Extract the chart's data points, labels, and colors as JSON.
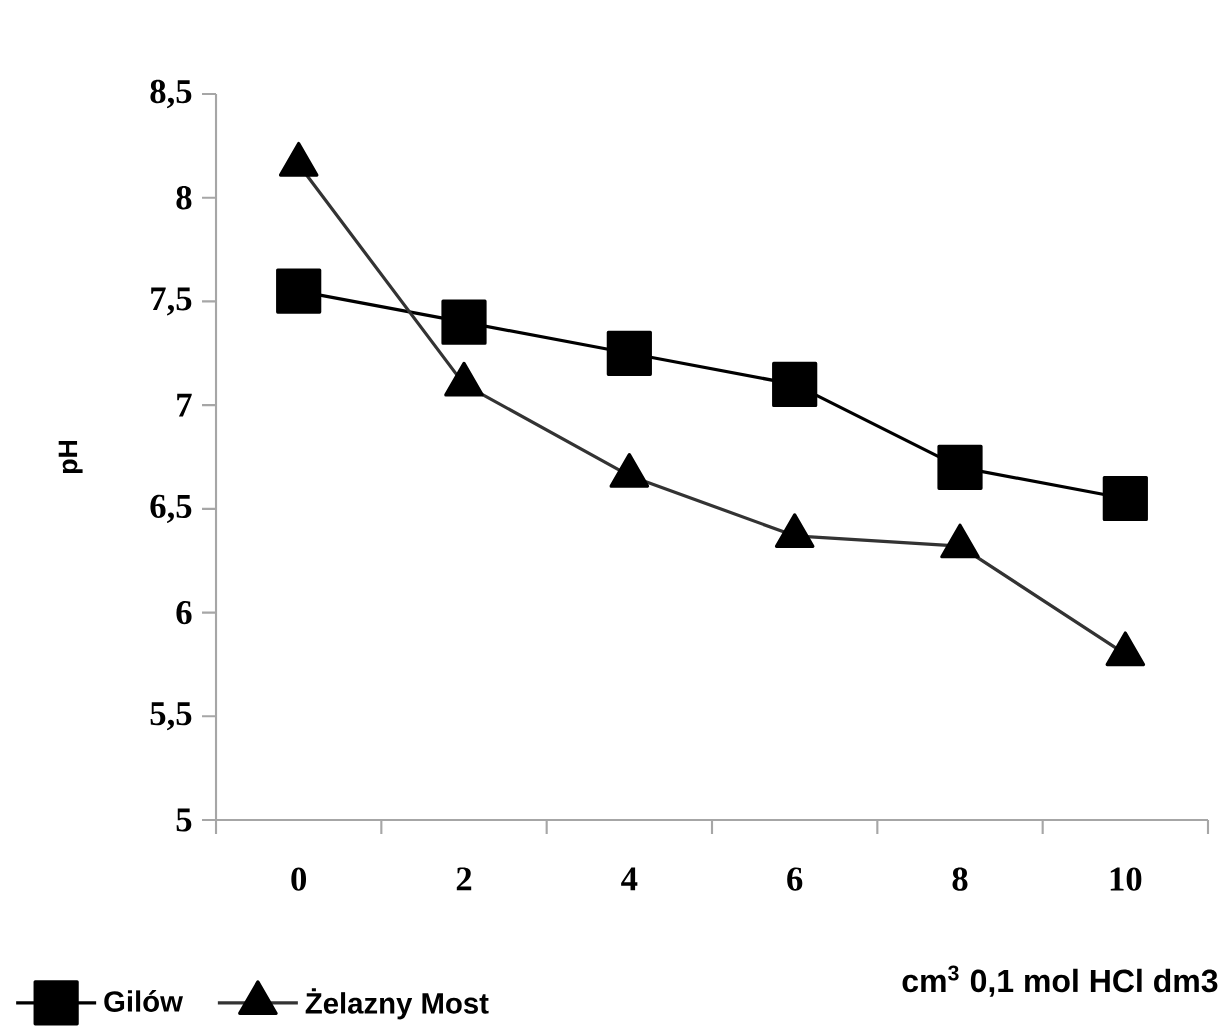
{
  "chart_data": {
    "type": "line",
    "xlabel": "cm$^{3}$ 0,1 mol HCl dm3",
    "ylabel": "pH",
    "categories": [
      "0",
      "2",
      "4",
      "6",
      "8",
      "10"
    ],
    "series": [
      {
        "name": "Gilów",
        "color": "#000000",
        "marker": "square",
        "values": [
          7.55,
          7.4,
          7.25,
          7.1,
          6.7,
          6.55
        ]
      },
      {
        "name": "Żelazny Most",
        "color": "#333333",
        "marker": "triangle",
        "values": [
          8.16,
          7.1,
          6.66,
          6.37,
          6.32,
          5.8
        ]
      }
    ],
    "ylim": [
      5,
      8.5
    ],
    "yticks": [
      {
        "value": 5,
        "label": "5"
      },
      {
        "value": 5.5,
        "label": "5,5"
      },
      {
        "value": 6,
        "label": "6"
      },
      {
        "value": 6.5,
        "label": "6,5"
      },
      {
        "value": 7,
        "label": "7"
      },
      {
        "value": 7.5,
        "label": "7,5"
      },
      {
        "value": 8,
        "label": "8"
      },
      {
        "value": 8.5,
        "label": "8,5"
      }
    ],
    "grid": false,
    "legend": "bottom left",
    "line_style": "solid"
  }
}
